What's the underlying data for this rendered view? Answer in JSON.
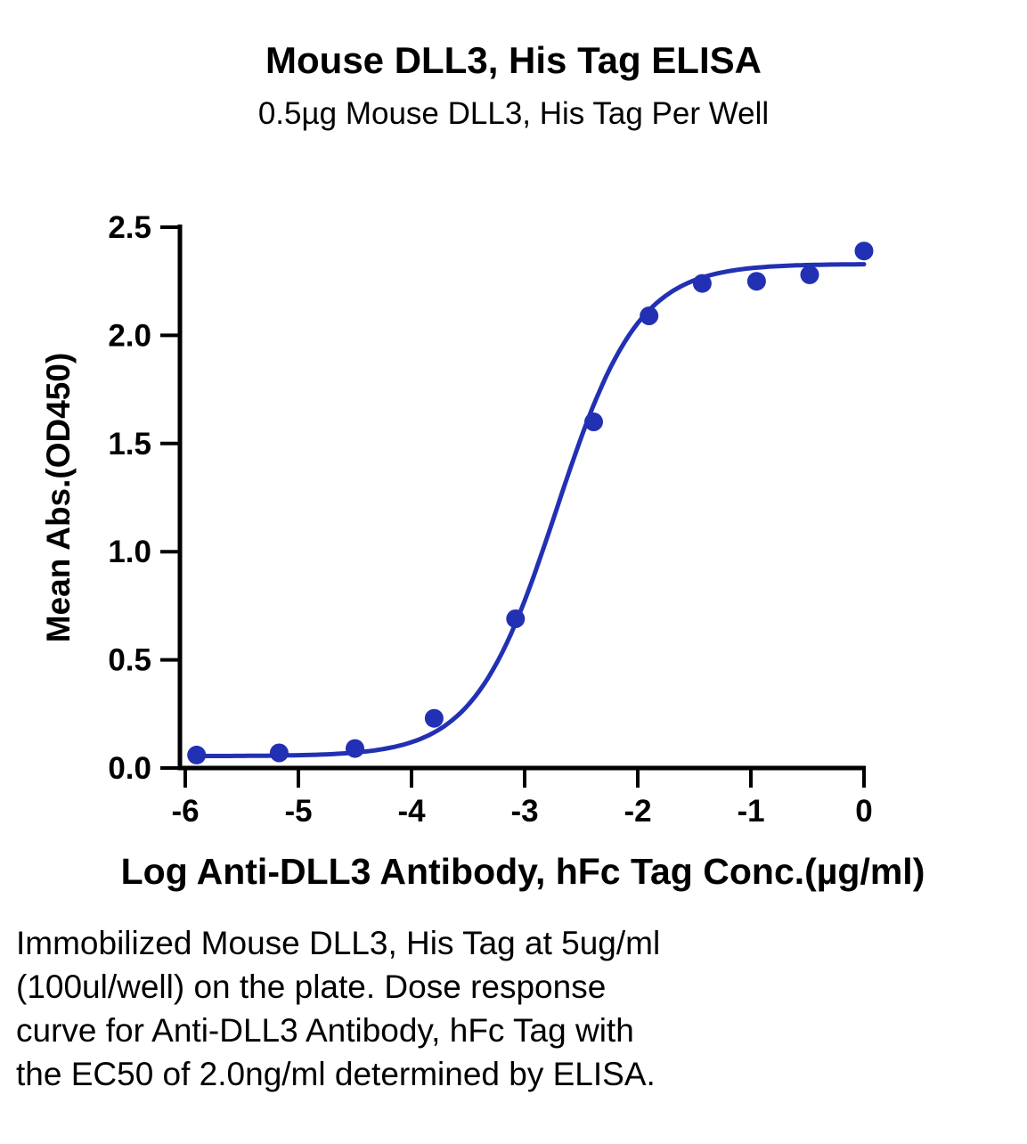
{
  "header": {
    "title": "Mouse DLL3, His Tag ELISA",
    "subtitle": "0.5µg Mouse DLL3, His Tag Per Well"
  },
  "chart_data": {
    "type": "scatter",
    "title": "Mouse DLL3, His Tag ELISA",
    "subtitle": "0.5µg Mouse DLL3, His Tag Per Well",
    "xlabel": "Log Anti-DLL3 Antibody, hFc Tag Conc.(µg/ml)",
    "ylabel": "Mean Abs.(OD450)",
    "xlim": [
      -6,
      0
    ],
    "ylim": [
      0,
      2.5
    ],
    "grid": false,
    "legend": false,
    "x_ticks": [
      {
        "v": -6,
        "label": "-6"
      },
      {
        "v": -5,
        "label": "-5"
      },
      {
        "v": -4,
        "label": "-4"
      },
      {
        "v": -3,
        "label": "-3"
      },
      {
        "v": -2,
        "label": "-2"
      },
      {
        "v": -1,
        "label": "-1"
      },
      {
        "v": 0,
        "label": "0"
      }
    ],
    "y_ticks": [
      {
        "v": 0.0,
        "label": "0.0"
      },
      {
        "v": 0.5,
        "label": "0.5"
      },
      {
        "v": 1.0,
        "label": "1.0"
      },
      {
        "v": 1.5,
        "label": "1.5"
      },
      {
        "v": 2.0,
        "label": "2.0"
      },
      {
        "v": 2.5,
        "label": "2.5"
      }
    ],
    "points": [
      {
        "x": -5.9,
        "y": 0.06
      },
      {
        "x": -5.17,
        "y": 0.07
      },
      {
        "x": -4.5,
        "y": 0.09
      },
      {
        "x": -3.8,
        "y": 0.23
      },
      {
        "x": -3.08,
        "y": 0.69
      },
      {
        "x": -2.39,
        "y": 1.6
      },
      {
        "x": -1.9,
        "y": 2.09
      },
      {
        "x": -1.43,
        "y": 2.24
      },
      {
        "x": -0.95,
        "y": 2.25
      },
      {
        "x": -0.48,
        "y": 2.28
      },
      {
        "x": 0.0,
        "y": 2.39
      }
    ],
    "fit": {
      "type": "4PL",
      "bottom": 0.055,
      "top": 2.33,
      "log_ec50": -2.72,
      "hill": 1.2,
      "x_start": -5.92,
      "x_end": 0.02
    },
    "curve_color": "#2230b4",
    "point_color": "#2230b4",
    "axis_color": "#000000"
  },
  "caption": {
    "text": "Immobilized Mouse DLL3, His Tag at 5ug/ml\n(100ul/well) on the plate. Dose response\ncurve for Anti-DLL3 Antibody, hFc Tag with\nthe EC50 of 2.0ng/ml determined by ELISA."
  }
}
